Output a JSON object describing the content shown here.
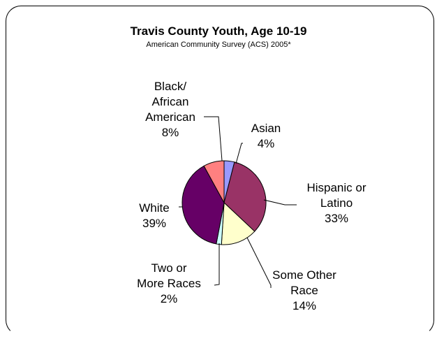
{
  "chart_data": {
    "type": "pie",
    "title": "Travis County Youth, Age 10-19",
    "subtitle": "American Community Survey (ACS) 2005*",
    "slices": [
      {
        "label": "Asian",
        "label_lines": [
          "Asian"
        ],
        "value_text": "4%",
        "value": 4,
        "color": "#9999ff"
      },
      {
        "label": "Hispanic or Latino",
        "label_lines": [
          "Hispanic or",
          "Latino"
        ],
        "value_text": "33%",
        "value": 33,
        "color": "#993366"
      },
      {
        "label": "Some Other Race",
        "label_lines": [
          "Some Other",
          "Race"
        ],
        "value_text": "14%",
        "value": 14,
        "color": "#ffffcc"
      },
      {
        "label": "Two or More Races",
        "label_lines": [
          "Two or",
          "More Races"
        ],
        "value_text": "2%",
        "value": 2,
        "color": "#ccffff"
      },
      {
        "label": "White",
        "label_lines": [
          "White"
        ],
        "value_text": "39%",
        "value": 39,
        "color": "#660066"
      },
      {
        "label": "Black/ African American",
        "label_lines": [
          "Black/",
          "African",
          "American"
        ],
        "value_text": "8%",
        "value": 8,
        "color": "#ff8080"
      }
    ],
    "start_angle": "top",
    "direction": "clockwise",
    "legend": "none",
    "data_labels": "outside with leader lines"
  }
}
